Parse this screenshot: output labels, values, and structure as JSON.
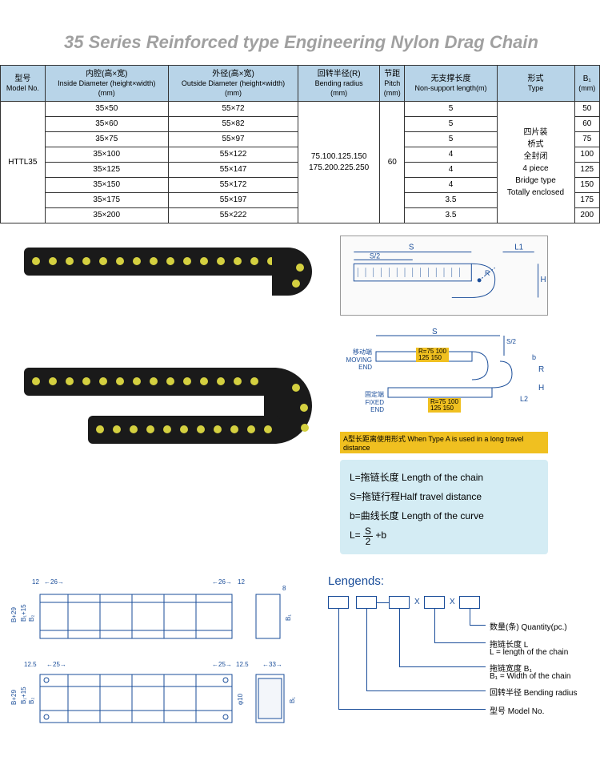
{
  "title": "35 Series Reinforced type Engineering Nylon Drag Chain",
  "headers": {
    "model": {
      "cn": "型号",
      "en": "Model No.",
      "unit": ""
    },
    "inside": {
      "cn": "内腔(高×宽)",
      "en": "Inside Diameter (height×width)",
      "unit": "(mm)"
    },
    "outside": {
      "cn": "外径(高×宽)",
      "en": "Outside Diameter (height×width)",
      "unit": "(mm)"
    },
    "radius": {
      "cn": "回转半径(R)",
      "en": "Bending radius",
      "unit": "(mm)"
    },
    "pitch": {
      "cn": "节距",
      "en": "Pitch",
      "unit": "(mm)"
    },
    "nonsupport": {
      "cn": "无支撑长度",
      "en": "Non-support length(m)",
      "unit": ""
    },
    "type": {
      "cn": "形式",
      "en": "Type",
      "unit": ""
    },
    "b1": {
      "cn": "B₁",
      "en": "",
      "unit": "(mm)"
    }
  },
  "model": "HTTL35",
  "radius_vals": "75.100.125.150\n175.200.225.250",
  "pitch_val": "60",
  "type_val": "四片装\n桥式\n全封闭\n4 piece\nBridge type\nTotally enclosed",
  "rows": [
    {
      "inside": "35×50",
      "outside": "55×72",
      "ns": "5",
      "b1": "50"
    },
    {
      "inside": "35×60",
      "outside": "55×82",
      "ns": "5",
      "b1": "60"
    },
    {
      "inside": "35×75",
      "outside": "55×97",
      "ns": "5",
      "b1": "75"
    },
    {
      "inside": "35×100",
      "outside": "55×122",
      "ns": "4",
      "b1": "100"
    },
    {
      "inside": "35×125",
      "outside": "55×147",
      "ns": "4",
      "b1": "125"
    },
    {
      "inside": "35×150",
      "outside": "55×172",
      "ns": "4",
      "b1": "150"
    },
    {
      "inside": "35×175",
      "outside": "55×197",
      "ns": "3.5",
      "b1": "175"
    },
    {
      "inside": "35×200",
      "outside": "55×222",
      "ns": "3.5",
      "b1": "200"
    }
  ],
  "diagram_labels": {
    "moving": "移动端\nMOVING END",
    "fixed": "固定端\nFIXED END",
    "r1": "R=75 100\n125 150",
    "r2": "R=75 100\n125 150",
    "note": "A型长距离使用形式 When Type A is used in a long travel distance",
    "S": "S",
    "L1": "L1",
    "H": "H",
    "R": "R",
    "b": "b",
    "L2": "L2",
    "S2": "S/2"
  },
  "formula": {
    "l1": "L=拖链长度 Length of the chain",
    "l2": "S=拖链行程Half travel distance",
    "l3": "b=曲线长度 Length of the curve",
    "l4": "L= S/2 +b"
  },
  "legends": {
    "title": "Lengends:",
    "items": [
      {
        "cn": "数量(条) Quantity(pc.)",
        "en": ""
      },
      {
        "cn": "拖链长度 L",
        "en": "L = length of the chain"
      },
      {
        "cn": "拖链宽度 B₁",
        "en": "B₁ = Width of the chain"
      },
      {
        "cn": "回转半径 Bending radius",
        "en": ""
      },
      {
        "cn": "型号 Model No.",
        "en": ""
      }
    ],
    "x": "X"
  },
  "dims": {
    "d12": "12",
    "d26": "26",
    "d25": "25",
    "d125": "12.5",
    "d33": "33",
    "d8": "8",
    "bh": "B+29",
    "b1h": "B₁+15",
    "b2": "B₂",
    "b1": "B₁",
    "phi": "φ10"
  }
}
